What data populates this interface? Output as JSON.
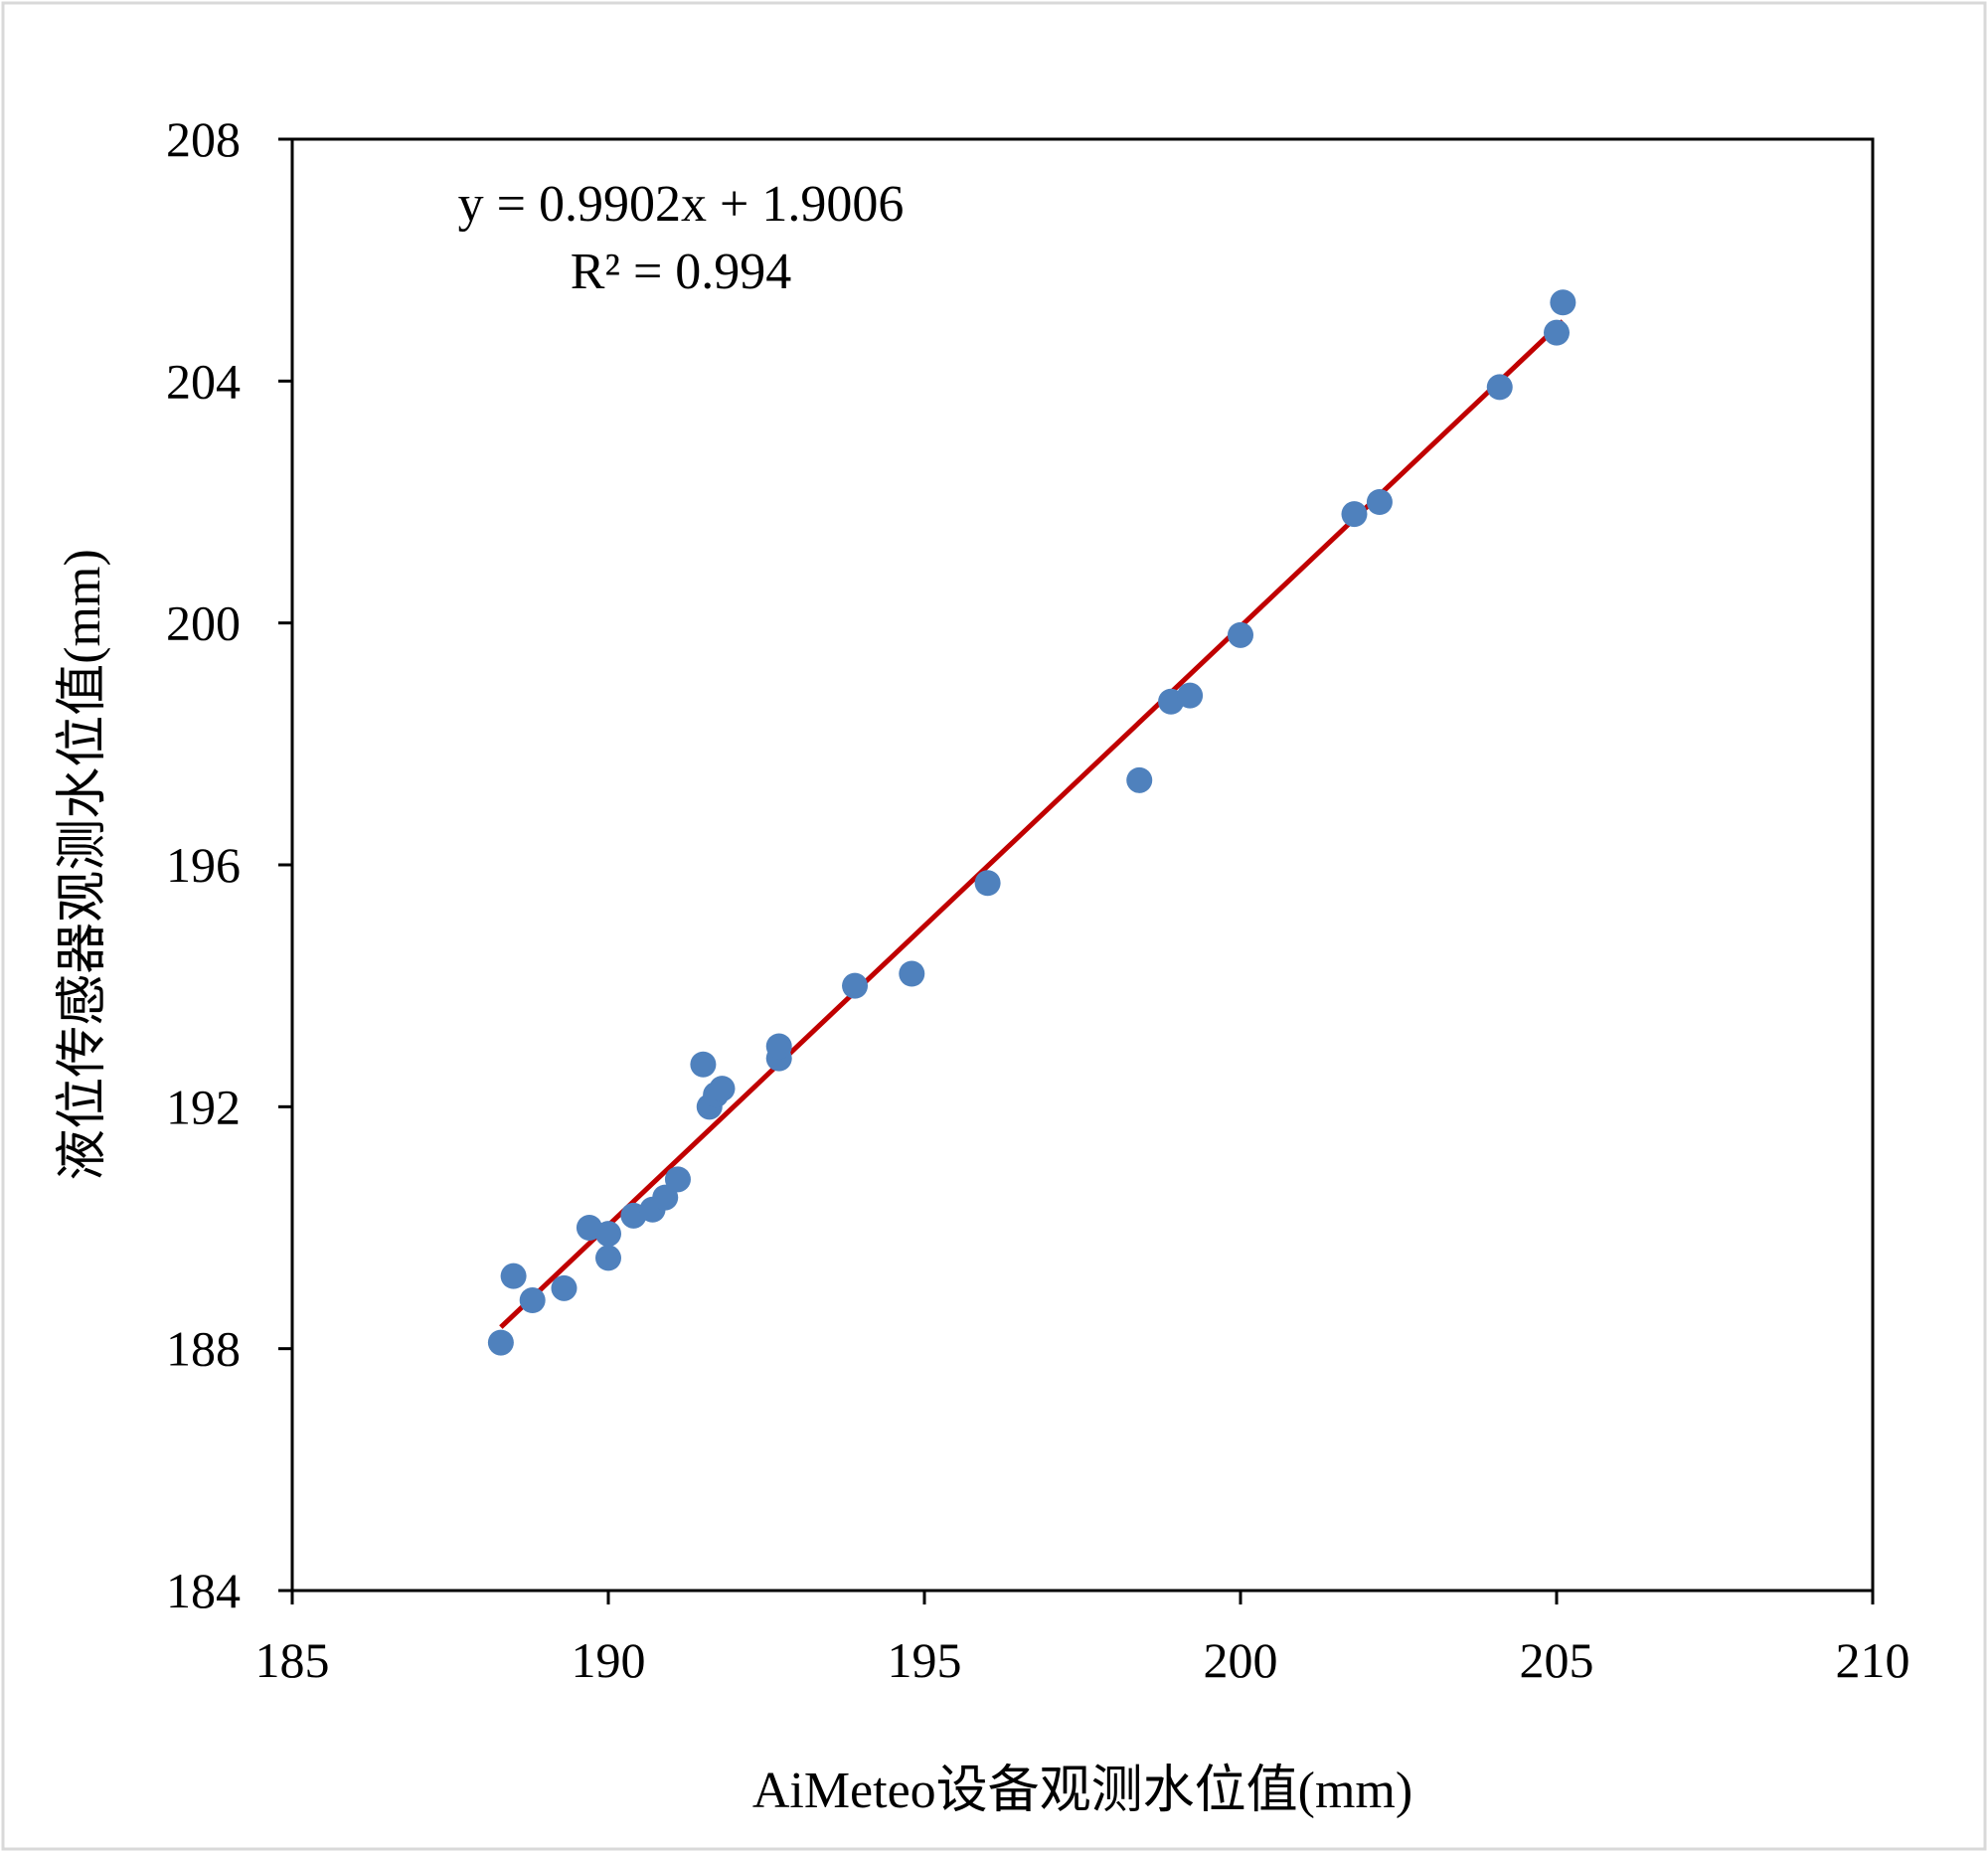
{
  "chart_data": {
    "type": "scatter",
    "title": "",
    "xlabel": "AiMeteo设备观测水位值(mm)",
    "ylabel": "液位传感器观测水位值(mm)",
    "xlim": [
      185,
      210
    ],
    "ylim": [
      184,
      208
    ],
    "xticks": [
      185,
      190,
      195,
      200,
      205,
      210
    ],
    "yticks": [
      184,
      188,
      192,
      196,
      200,
      204,
      208
    ],
    "xtick_labels": [
      "185",
      "190",
      "195",
      "200",
      "205",
      "210"
    ],
    "ytick_labels": [
      "184",
      "188",
      "192",
      "196",
      "200",
      "204",
      "208"
    ],
    "grid": false,
    "legend": "none",
    "annotations": {
      "equation": "y = 0.9902x + 1.9006",
      "r_squared": "R² = 0.994"
    },
    "trendline": {
      "slope": 0.9902,
      "intercept": 1.9006,
      "x_range": [
        188.3,
        205.1
      ],
      "color": "#c00000"
    },
    "marker_color": "#4f81bd",
    "series": [
      {
        "x": [
          188.3,
          188.5,
          188.8,
          189.3,
          189.7,
          190.0,
          190.0,
          190.4,
          190.7,
          190.9,
          191.1,
          191.5,
          191.6,
          191.7,
          191.8,
          192.7,
          192.7,
          193.9,
          194.8,
          196.0,
          198.4,
          198.9,
          199.2,
          200.0,
          201.8,
          202.2,
          204.1,
          205.0,
          205.1
        ],
        "y": [
          188.1,
          189.2,
          188.8,
          189.0,
          190.0,
          189.9,
          189.5,
          190.2,
          190.3,
          190.5,
          190.8,
          192.7,
          192.0,
          192.2,
          192.3,
          192.8,
          193.0,
          194.0,
          194.2,
          195.7,
          197.4,
          198.7,
          198.8,
          199.8,
          201.8,
          202.0,
          203.9,
          204.8,
          205.3
        ]
      }
    ]
  }
}
